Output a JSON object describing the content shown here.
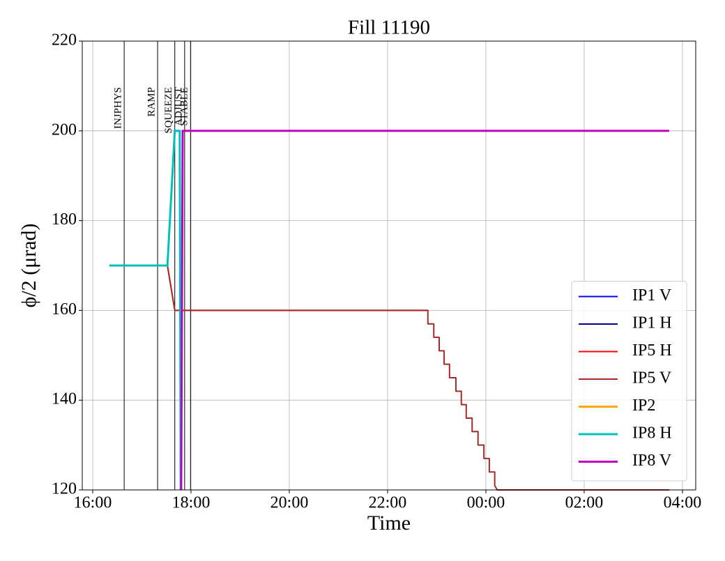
{
  "chart_data": {
    "type": "line",
    "title": "Fill 11190",
    "xlabel": "Time",
    "ylabel": "ϕ/2 (μrad)",
    "xlim": [
      15.787,
      28.27
    ],
    "ylim": [
      120,
      220
    ],
    "xticks": [
      {
        "value": 16,
        "label": "16:00"
      },
      {
        "value": 18,
        "label": "18:00"
      },
      {
        "value": 20,
        "label": "20:00"
      },
      {
        "value": 22,
        "label": "22:00"
      },
      {
        "value": 24,
        "label": "00:00"
      },
      {
        "value": 26,
        "label": "02:00"
      },
      {
        "value": 28,
        "label": "04:00"
      }
    ],
    "yticks": [
      120,
      140,
      160,
      180,
      200,
      220
    ],
    "grid": true,
    "legend": "lower right",
    "annotations": [
      {
        "x": 16.64,
        "label": "INJPHYS"
      },
      {
        "x": 17.32,
        "label": "RAMP"
      },
      {
        "x": 17.67,
        "label": "SQUEEZE"
      },
      {
        "x": 17.87,
        "label": "ADJUST"
      },
      {
        "x": 17.99,
        "label": "STABLE"
      }
    ],
    "series": [
      {
        "name": "IP1 V",
        "color": "#0000ff",
        "linewidth": 2,
        "x": [],
        "values": []
      },
      {
        "name": "IP1 H",
        "color": "#00008b",
        "linewidth": 2,
        "x": [],
        "values": []
      },
      {
        "name": "IP5 H",
        "color": "#ff0000",
        "linewidth": 2,
        "x": [
          16.34,
          17.52,
          17.67,
          22.82
        ],
        "values": [
          170,
          170,
          160,
          160
        ]
      },
      {
        "name": "IP5 V",
        "color": "#a52a2a",
        "linewidth": 2,
        "x": [
          16.34,
          17.52,
          17.67,
          22.82,
          22.82,
          22.94,
          22.94,
          23.05,
          23.05,
          23.15,
          23.15,
          23.26,
          23.26,
          23.39,
          23.39,
          23.5,
          23.5,
          23.6,
          23.6,
          23.72,
          23.72,
          23.84,
          23.84,
          23.96,
          23.96,
          24.07,
          24.07,
          24.18,
          24.18,
          24.23,
          27.73
        ],
        "values": [
          170,
          170,
          160,
          160,
          157,
          157,
          154,
          154,
          151,
          151,
          148,
          148,
          145,
          145,
          142,
          142,
          139,
          139,
          136,
          136,
          133,
          133,
          130,
          130,
          127,
          127,
          124,
          124,
          121,
          120,
          120
        ]
      },
      {
        "name": "IP2",
        "color": "#ffa500",
        "linewidth": 3,
        "x": [],
        "values": []
      },
      {
        "name": "IP8 H",
        "color": "#00bfbf",
        "linewidth": 3,
        "x": [
          16.34,
          17.52,
          17.67,
          17.77,
          17.79
        ],
        "values": [
          170,
          170,
          200,
          200,
          120
        ]
      },
      {
        "name": "IP8 V",
        "color": "#bf00bf",
        "linewidth": 3,
        "x": [
          17.8,
          17.83,
          27.73
        ],
        "values": [
          120,
          200,
          200
        ]
      }
    ]
  }
}
